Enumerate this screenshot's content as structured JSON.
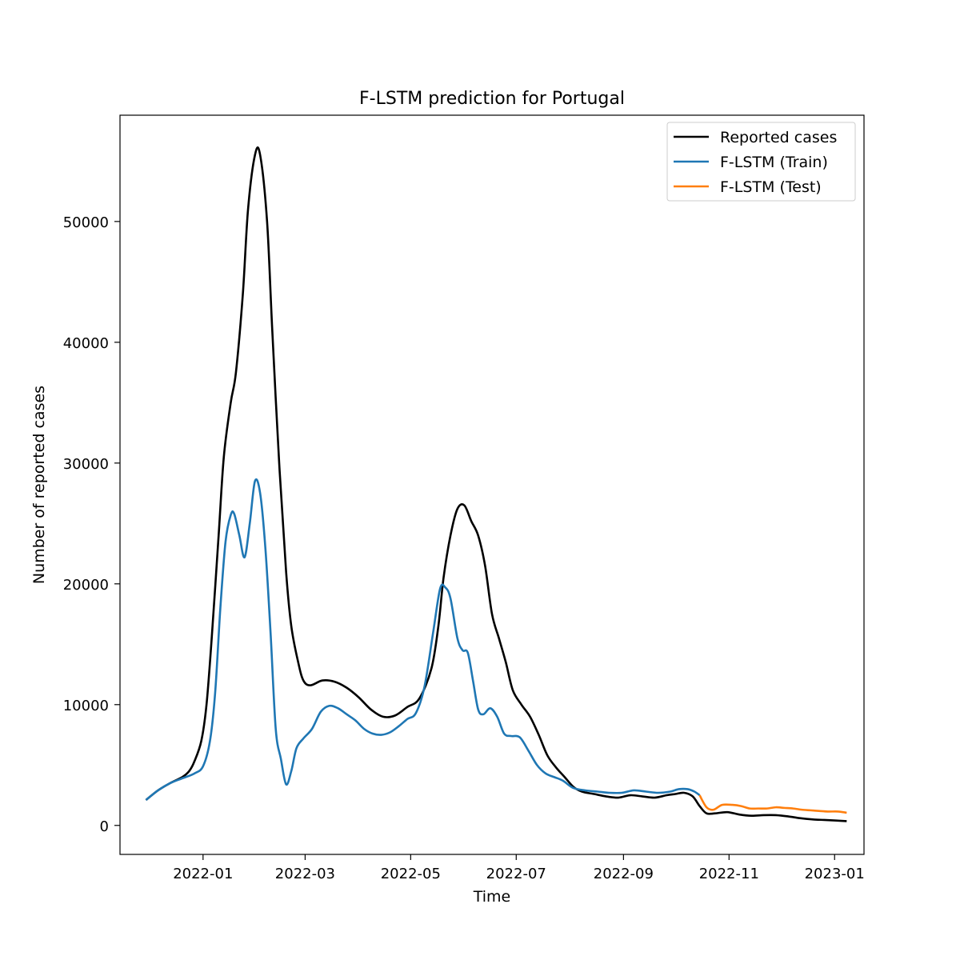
{
  "chart_data": {
    "type": "line",
    "title": "F-LSTM prediction for Portugal",
    "xlabel": "Time",
    "ylabel": "Number of reported cases",
    "xlim": [
      "2021-11-14",
      "2023-01-18"
    ],
    "ylim": [
      -2400,
      58800
    ],
    "x_ticks": [
      "2022-01",
      "2022-03",
      "2022-05",
      "2022-07",
      "2022-09",
      "2022-11",
      "2023-01"
    ],
    "y_ticks": [
      0,
      10000,
      20000,
      30000,
      40000,
      50000
    ],
    "grid": false,
    "legend_position": "top-right",
    "series": [
      {
        "name": "Reported cases",
        "color": "#000000",
        "points": [
          [
            "2021-11-29",
            2100
          ],
          [
            "2021-12-06",
            2900
          ],
          [
            "2021-12-13",
            3500
          ],
          [
            "2021-12-20",
            4000
          ],
          [
            "2021-12-24",
            4500
          ],
          [
            "2021-12-27",
            5300
          ],
          [
            "2021-12-31",
            7000
          ],
          [
            "2022-01-03",
            10000
          ],
          [
            "2022-01-06",
            15500
          ],
          [
            "2022-01-10",
            24000
          ],
          [
            "2022-01-13",
            30500
          ],
          [
            "2022-01-17",
            35000
          ],
          [
            "2022-01-20",
            37500
          ],
          [
            "2022-01-24",
            44000
          ],
          [
            "2022-01-27",
            51000
          ],
          [
            "2022-01-31",
            55500
          ],
          [
            "2022-02-03",
            55500
          ],
          [
            "2022-02-07",
            50000
          ],
          [
            "2022-02-10",
            41000
          ],
          [
            "2022-02-14",
            30000
          ],
          [
            "2022-02-18",
            21000
          ],
          [
            "2022-02-21",
            16500
          ],
          [
            "2022-02-25",
            13500
          ],
          [
            "2022-02-28",
            12000
          ],
          [
            "2022-03-04",
            11600
          ],
          [
            "2022-03-11",
            12000
          ],
          [
            "2022-03-18",
            11900
          ],
          [
            "2022-03-25",
            11400
          ],
          [
            "2022-04-01",
            10600
          ],
          [
            "2022-04-08",
            9600
          ],
          [
            "2022-04-15",
            9000
          ],
          [
            "2022-04-22",
            9100
          ],
          [
            "2022-04-29",
            9800
          ],
          [
            "2022-05-06",
            10500
          ],
          [
            "2022-05-13",
            13000
          ],
          [
            "2022-05-17",
            16500
          ],
          [
            "2022-05-20",
            20500
          ],
          [
            "2022-05-24",
            24000
          ],
          [
            "2022-05-28",
            26200
          ],
          [
            "2022-06-01",
            26500
          ],
          [
            "2022-06-05",
            25200
          ],
          [
            "2022-06-09",
            24000
          ],
          [
            "2022-06-13",
            21500
          ],
          [
            "2022-06-17",
            17500
          ],
          [
            "2022-06-21",
            15500
          ],
          [
            "2022-06-25",
            13500
          ],
          [
            "2022-06-29",
            11200
          ],
          [
            "2022-07-04",
            10000
          ],
          [
            "2022-07-09",
            9000
          ],
          [
            "2022-07-14",
            7500
          ],
          [
            "2022-07-19",
            5800
          ],
          [
            "2022-07-24",
            4800
          ],
          [
            "2022-07-29",
            4000
          ],
          [
            "2022-08-03",
            3200
          ],
          [
            "2022-08-08",
            2800
          ],
          [
            "2022-08-15",
            2600
          ],
          [
            "2022-08-22",
            2400
          ],
          [
            "2022-08-29",
            2300
          ],
          [
            "2022-09-05",
            2500
          ],
          [
            "2022-09-12",
            2400
          ],
          [
            "2022-09-19",
            2300
          ],
          [
            "2022-09-26",
            2500
          ],
          [
            "2022-10-01",
            2600
          ],
          [
            "2022-10-06",
            2700
          ],
          [
            "2022-10-11",
            2400
          ],
          [
            "2022-10-15",
            1600
          ],
          [
            "2022-10-19",
            1000
          ],
          [
            "2022-10-24",
            1000
          ],
          [
            "2022-10-31",
            1100
          ],
          [
            "2022-11-07",
            900
          ],
          [
            "2022-11-14",
            800
          ],
          [
            "2022-11-21",
            850
          ],
          [
            "2022-11-28",
            850
          ],
          [
            "2022-12-05",
            750
          ],
          [
            "2022-12-12",
            600
          ],
          [
            "2022-12-19",
            500
          ],
          [
            "2022-12-26",
            450
          ],
          [
            "2023-01-02",
            400
          ],
          [
            "2023-01-08",
            350
          ]
        ]
      },
      {
        "name": "F-LSTM (Train)",
        "color": "#1f77b4",
        "points": [
          [
            "2021-11-29",
            2100
          ],
          [
            "2021-12-06",
            2900
          ],
          [
            "2021-12-13",
            3500
          ],
          [
            "2021-12-20",
            3900
          ],
          [
            "2021-12-27",
            4300
          ],
          [
            "2022-01-01",
            4900
          ],
          [
            "2022-01-05",
            7000
          ],
          [
            "2022-01-08",
            11000
          ],
          [
            "2022-01-11",
            18000
          ],
          [
            "2022-01-14",
            23500
          ],
          [
            "2022-01-17",
            25700
          ],
          [
            "2022-01-19",
            25800
          ],
          [
            "2022-01-22",
            24000
          ],
          [
            "2022-01-25",
            22200
          ],
          [
            "2022-01-28",
            25000
          ],
          [
            "2022-01-31",
            28500
          ],
          [
            "2022-02-03",
            27500
          ],
          [
            "2022-02-06",
            23000
          ],
          [
            "2022-02-09",
            16000
          ],
          [
            "2022-02-12",
            8000
          ],
          [
            "2022-02-15",
            5500
          ],
          [
            "2022-02-18",
            3400
          ],
          [
            "2022-02-21",
            4500
          ],
          [
            "2022-02-24",
            6400
          ],
          [
            "2022-02-28",
            7200
          ],
          [
            "2022-03-05",
            8000
          ],
          [
            "2022-03-10",
            9400
          ],
          [
            "2022-03-15",
            9900
          ],
          [
            "2022-03-20",
            9700
          ],
          [
            "2022-03-25",
            9200
          ],
          [
            "2022-03-30",
            8700
          ],
          [
            "2022-04-04",
            8000
          ],
          [
            "2022-04-09",
            7600
          ],
          [
            "2022-04-14",
            7500
          ],
          [
            "2022-04-19",
            7700
          ],
          [
            "2022-04-24",
            8200
          ],
          [
            "2022-04-29",
            8800
          ],
          [
            "2022-05-04",
            9300
          ],
          [
            "2022-05-09",
            11500
          ],
          [
            "2022-05-14",
            16000
          ],
          [
            "2022-05-18",
            19600
          ],
          [
            "2022-05-21",
            19700
          ],
          [
            "2022-05-24",
            18800
          ],
          [
            "2022-05-28",
            15500
          ],
          [
            "2022-05-31",
            14500
          ],
          [
            "2022-06-03",
            14300
          ],
          [
            "2022-06-06",
            12000
          ],
          [
            "2022-06-09",
            9600
          ],
          [
            "2022-06-12",
            9200
          ],
          [
            "2022-06-16",
            9700
          ],
          [
            "2022-06-20",
            9000
          ],
          [
            "2022-06-24",
            7600
          ],
          [
            "2022-06-28",
            7400
          ],
          [
            "2022-07-03",
            7300
          ],
          [
            "2022-07-08",
            6200
          ],
          [
            "2022-07-13",
            5000
          ],
          [
            "2022-07-18",
            4300
          ],
          [
            "2022-07-23",
            4000
          ],
          [
            "2022-07-28",
            3700
          ],
          [
            "2022-08-03",
            3100
          ],
          [
            "2022-08-10",
            2900
          ],
          [
            "2022-08-17",
            2800
          ],
          [
            "2022-08-24",
            2700
          ],
          [
            "2022-08-31",
            2700
          ],
          [
            "2022-09-07",
            2900
          ],
          [
            "2022-09-14",
            2800
          ],
          [
            "2022-09-21",
            2700
          ],
          [
            "2022-09-28",
            2800
          ],
          [
            "2022-10-03",
            3000
          ],
          [
            "2022-10-08",
            3000
          ],
          [
            "2022-10-12",
            2800
          ],
          [
            "2022-10-15",
            2500
          ]
        ]
      },
      {
        "name": "F-LSTM (Test)",
        "color": "#ff7f0e",
        "points": [
          [
            "2022-10-15",
            2500
          ],
          [
            "2022-10-19",
            1500
          ],
          [
            "2022-10-23",
            1300
          ],
          [
            "2022-10-28",
            1700
          ],
          [
            "2022-11-03",
            1700
          ],
          [
            "2022-11-08",
            1600
          ],
          [
            "2022-11-13",
            1400
          ],
          [
            "2022-11-18",
            1400
          ],
          [
            "2022-11-23",
            1400
          ],
          [
            "2022-11-28",
            1500
          ],
          [
            "2022-12-03",
            1450
          ],
          [
            "2022-12-08",
            1400
          ],
          [
            "2022-12-13",
            1300
          ],
          [
            "2022-12-18",
            1250
          ],
          [
            "2022-12-23",
            1200
          ],
          [
            "2022-12-28",
            1150
          ],
          [
            "2023-01-03",
            1150
          ],
          [
            "2023-01-08",
            1050
          ]
        ]
      }
    ]
  }
}
